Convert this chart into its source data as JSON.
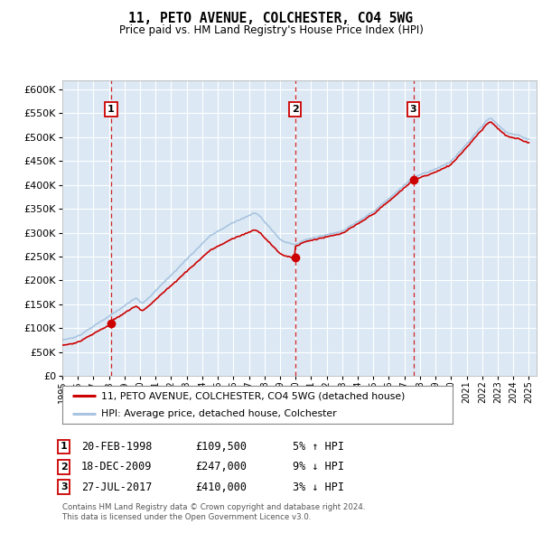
{
  "title": "11, PETO AVENUE, COLCHESTER, CO4 5WG",
  "subtitle": "Price paid vs. HM Land Registry's House Price Index (HPI)",
  "legend_line1": "11, PETO AVENUE, COLCHESTER, CO4 5WG (detached house)",
  "legend_line2": "HPI: Average price, detached house, Colchester",
  "footnote1": "Contains HM Land Registry data © Crown copyright and database right 2024.",
  "footnote2": "This data is licensed under the Open Government Licence v3.0.",
  "sale_year_floats": [
    1998.13,
    2009.96,
    2017.57
  ],
  "sale_prices": [
    109500,
    247000,
    410000
  ],
  "sale_labels": [
    "1",
    "2",
    "3"
  ],
  "sale_dates_str": [
    "20-FEB-1998",
    "18-DEC-2009",
    "27-JUL-2017"
  ],
  "sale_prices_str": [
    "£109,500",
    "£247,000",
    "£410,000"
  ],
  "sale_pct_str": [
    "5% ↑ HPI",
    "9% ↓ HPI",
    "3% ↓ HPI"
  ],
  "hpi_color": "#a8c4e0",
  "price_color": "#cc0000",
  "dashed_line_color": "#cc0000",
  "bg_color": "#dce9f5",
  "grid_color": "#ffffff",
  "ylim": [
    0,
    620000
  ],
  "yticks": [
    0,
    50000,
    100000,
    150000,
    200000,
    250000,
    300000,
    350000,
    400000,
    450000,
    500000,
    550000,
    600000
  ],
  "xstart": 1995,
  "xend": 2025.5
}
